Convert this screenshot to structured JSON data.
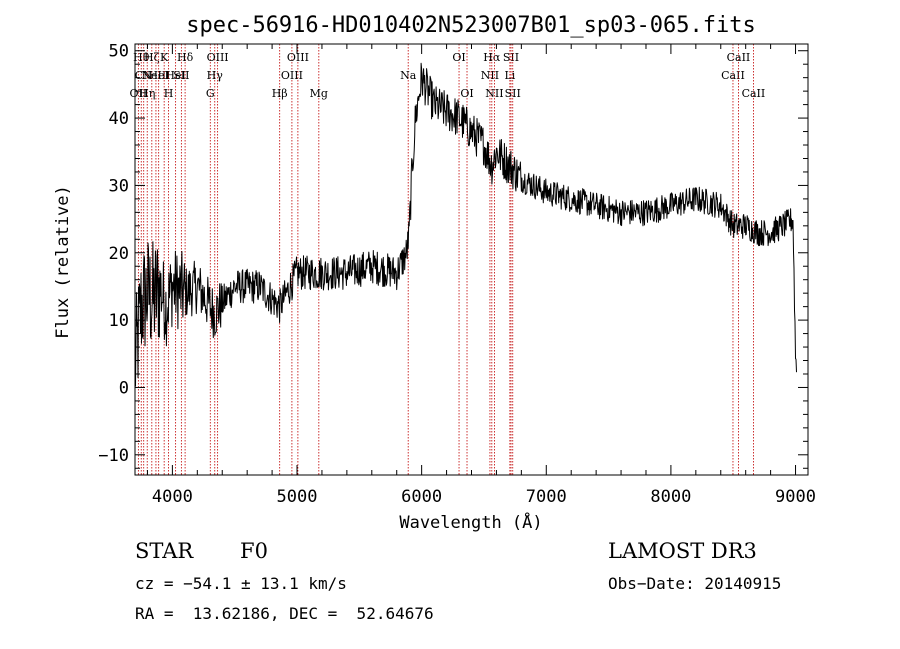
{
  "chart_data": {
    "type": "line",
    "title": "spec-56916-HD010402N523007B01_sp03-065.fits",
    "xlabel": "Wavelength (Å)",
    "ylabel": "Flux (relative)",
    "xlim": [
      3700,
      9100
    ],
    "ylim": [
      -13,
      51
    ],
    "xticks": [
      4000,
      5000,
      6000,
      7000,
      8000,
      9000
    ],
    "yticks": [
      -10,
      0,
      10,
      20,
      30,
      40,
      50
    ],
    "grid": false,
    "spectrum_trend": [
      {
        "x": 3700,
        "y": 3
      },
      {
        "x": 3750,
        "y": 12
      },
      {
        "x": 3800,
        "y": 14
      },
      {
        "x": 3850,
        "y": 13
      },
      {
        "x": 3900,
        "y": 15
      },
      {
        "x": 3950,
        "y": 12
      },
      {
        "x": 4000,
        "y": 15
      },
      {
        "x": 4100,
        "y": 14
      },
      {
        "x": 4200,
        "y": 15
      },
      {
        "x": 4340,
        "y": 11
      },
      {
        "x": 4500,
        "y": 15
      },
      {
        "x": 4700,
        "y": 15
      },
      {
        "x": 4861,
        "y": 12
      },
      {
        "x": 5000,
        "y": 17
      },
      {
        "x": 5200,
        "y": 17
      },
      {
        "x": 5400,
        "y": 17
      },
      {
        "x": 5600,
        "y": 18
      },
      {
        "x": 5800,
        "y": 17
      },
      {
        "x": 5880,
        "y": 20
      },
      {
        "x": 5900,
        "y": 23
      },
      {
        "x": 5920,
        "y": 31
      },
      {
        "x": 5950,
        "y": 40
      },
      {
        "x": 6000,
        "y": 46
      },
      {
        "x": 6050,
        "y": 44
      },
      {
        "x": 6100,
        "y": 42
      },
      {
        "x": 6200,
        "y": 41
      },
      {
        "x": 6300,
        "y": 40
      },
      {
        "x": 6400,
        "y": 38
      },
      {
        "x": 6500,
        "y": 36
      },
      {
        "x": 6563,
        "y": 33
      },
      {
        "x": 6600,
        "y": 35
      },
      {
        "x": 6700,
        "y": 33
      },
      {
        "x": 6800,
        "y": 31
      },
      {
        "x": 7000,
        "y": 29
      },
      {
        "x": 7200,
        "y": 28
      },
      {
        "x": 7400,
        "y": 27
      },
      {
        "x": 7600,
        "y": 26
      },
      {
        "x": 7800,
        "y": 26
      },
      {
        "x": 8000,
        "y": 27
      },
      {
        "x": 8200,
        "y": 28
      },
      {
        "x": 8400,
        "y": 27
      },
      {
        "x": 8500,
        "y": 24
      },
      {
        "x": 8600,
        "y": 24
      },
      {
        "x": 8700,
        "y": 23
      },
      {
        "x": 8800,
        "y": 23
      },
      {
        "x": 8900,
        "y": 24
      },
      {
        "x": 8980,
        "y": 25
      },
      {
        "x": 9000,
        "y": 5
      },
      {
        "x": 9010,
        "y": 2
      }
    ],
    "line_markers": [
      {
        "x": 3727,
        "labels": [
          {
            "text": "OII",
            "row": 2
          }
        ]
      },
      {
        "x": 3750,
        "labels": [
          {
            "text": "Hθ",
            "row": 0
          }
        ]
      },
      {
        "x": 3770,
        "labels": [
          {
            "text": "CN",
            "row": 1
          }
        ]
      },
      {
        "x": 3798,
        "labels": [
          {
            "text": "Hη",
            "row": 2
          }
        ]
      },
      {
        "x": 3835,
        "labels": [
          {
            "text": "Hζ",
            "row": 0
          }
        ]
      },
      {
        "x": 3868,
        "labels": [
          {
            "text": "NeIII",
            "row": 1
          }
        ]
      },
      {
        "x": 3890,
        "labels": [
          {
            "text": "HeI",
            "row": 1
          }
        ]
      },
      {
        "x": 3934,
        "labels": [
          {
            "text": "K",
            "row": 0
          }
        ]
      },
      {
        "x": 3969,
        "labels": [
          {
            "text": "H",
            "row": 2
          }
        ]
      },
      {
        "x": 4026,
        "labels": [
          {
            "text": "HeI",
            "row": 1
          }
        ]
      },
      {
        "x": 4072,
        "labels": [
          {
            "text": "SII",
            "row": 1
          }
        ]
      },
      {
        "x": 4102,
        "labels": [
          {
            "text": "Hδ",
            "row": 0
          }
        ]
      },
      {
        "x": 4304,
        "labels": [
          {
            "text": "G",
            "row": 2
          }
        ]
      },
      {
        "x": 4340,
        "labels": [
          {
            "text": "Hγ",
            "row": 1
          }
        ]
      },
      {
        "x": 4363,
        "labels": [
          {
            "text": "OIII",
            "row": 0
          }
        ]
      },
      {
        "x": 4861,
        "labels": [
          {
            "text": "Hβ",
            "row": 2
          }
        ]
      },
      {
        "x": 4959,
        "labels": [
          {
            "text": "OIII",
            "row": 1
          }
        ]
      },
      {
        "x": 5007,
        "labels": [
          {
            "text": "OIII",
            "row": 0
          }
        ]
      },
      {
        "x": 5175,
        "labels": [
          {
            "text": "Mg",
            "row": 2
          }
        ]
      },
      {
        "x": 5892,
        "labels": [
          {
            "text": "Na",
            "row": 1
          }
        ]
      },
      {
        "x": 6300,
        "labels": [
          {
            "text": "OI",
            "row": 0
          }
        ]
      },
      {
        "x": 6364,
        "labels": [
          {
            "text": "OI",
            "row": 2
          }
        ]
      },
      {
        "x": 6548,
        "labels": [
          {
            "text": "NII",
            "row": 1
          }
        ]
      },
      {
        "x": 6563,
        "labels": [
          {
            "text": "Hα",
            "row": 0
          }
        ]
      },
      {
        "x": 6584,
        "labels": [
          {
            "text": "NII",
            "row": 2
          }
        ]
      },
      {
        "x": 6708,
        "labels": [
          {
            "text": "Li",
            "row": 1
          }
        ]
      },
      {
        "x": 6717,
        "labels": [
          {
            "text": "SII",
            "row": 0
          }
        ]
      },
      {
        "x": 6731,
        "labels": [
          {
            "text": "SII",
            "row": 2
          }
        ]
      },
      {
        "x": 8498,
        "labels": [
          {
            "text": "CaII",
            "row": 1
          }
        ]
      },
      {
        "x": 8542,
        "labels": [
          {
            "text": "CaII",
            "row": 0
          }
        ]
      },
      {
        "x": 8662,
        "labels": [
          {
            "text": "CaII",
            "row": 2
          }
        ]
      }
    ],
    "line_color": "#000000",
    "marker_color": "#c00000"
  },
  "info": {
    "object_class": "STAR",
    "subclass": "F0",
    "survey": "LAMOST DR3",
    "cz": "cz = −54.1 ± 13.1 km/s",
    "obs_date": "Obs−Date: 20140915",
    "coords": "RA =  13.62186, DEC =  52.64676"
  }
}
